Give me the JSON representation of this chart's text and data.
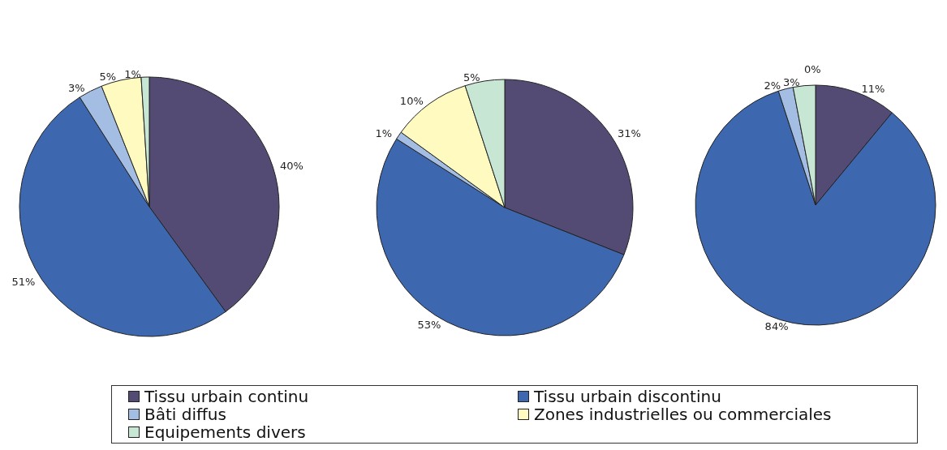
{
  "chart_data": [
    {
      "type": "pie",
      "categories": [
        "Tissu urbain continu",
        "Tissu urbain discontinu",
        "Bâti diffus",
        "Zones industrielles ou commerciales",
        "Equipements divers"
      ],
      "values": [
        40,
        51,
        3,
        5,
        1
      ],
      "value_labels": [
        "40%",
        "51%",
        "3%",
        "5%",
        "1%"
      ],
      "colors": [
        "#544b74",
        "#3d68b0",
        "#a3bde3",
        "#fffac0",
        "#c8e6d4"
      ],
      "legend": "bottom"
    },
    {
      "type": "pie",
      "categories": [
        null,
        null,
        null,
        null,
        null
      ],
      "values": [
        31,
        53,
        1,
        10,
        5
      ],
      "value_labels": [
        "31%",
        "53%",
        "1%",
        "10%",
        "5%"
      ],
      "colors": [
        "#544b74",
        "#3d68b0",
        "#a3bde3",
        "#fffac0",
        "#c8e6d4"
      ]
    },
    {
      "type": "pie",
      "categories": [
        null,
        null,
        null,
        null,
        null
      ],
      "values": [
        11,
        84,
        2,
        0,
        3
      ],
      "value_labels": [
        "11%",
        "84%",
        "2%",
        "0%",
        "3%"
      ],
      "colors": [
        "#544b74",
        "#3d68b0",
        "#a3bde3",
        "#fffac0",
        "#c8e6d4"
      ]
    }
  ]
}
